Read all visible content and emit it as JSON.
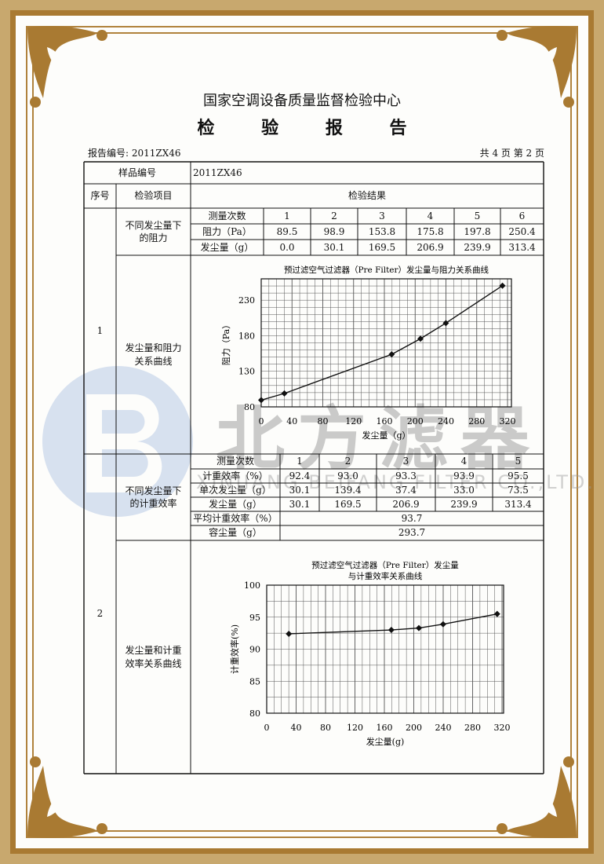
{
  "watermark": {
    "company_cn": "北方滤器",
    "company_en": "XINJIANG BEIFANG FILTER CO.,LTD.",
    "logo_color": "#9fb8dd"
  },
  "header": {
    "org": "国家空调设备质量监督检验中心",
    "title": "检 验 报 告",
    "report_no": "报告编号: 2011ZX46",
    "page_info": "共 4 页 第 2 页"
  },
  "table": {
    "sample_no_label": "样品编号",
    "sample_no": "2011ZX46",
    "col_seq": "序号",
    "col_item": "检验项目",
    "col_result": "检验结果",
    "sections": [
      {
        "seq": "1",
        "item_table": "不同发尘量下的阻力",
        "item_chart": "发尘量和阻力关系曲线",
        "rows": [
          [
            "测量次数",
            "1",
            "2",
            "3",
            "4",
            "5",
            "6"
          ],
          [
            "阻力（Pa）",
            "89.5",
            "98.9",
            "153.8",
            "175.8",
            "197.8",
            "250.4"
          ],
          [
            "发尘量（g）",
            "0.0",
            "30.1",
            "169.5",
            "206.9",
            "239.9",
            "313.4"
          ]
        ]
      },
      {
        "seq": "2",
        "item_table": "不同发尘量下的计重效率",
        "item_chart": "发尘量和计重效率关系曲线",
        "rows": [
          [
            "测量次数",
            "1",
            "2",
            "3",
            "4",
            "5"
          ],
          [
            "计重效率（%）",
            "92.4",
            "93.0",
            "93.3",
            "93.9",
            "95.5"
          ],
          [
            "单次发尘量（g）",
            "30.1",
            "139.4",
            "37.4",
            "33.0",
            "73.5"
          ],
          [
            "发尘量（g）",
            "30.1",
            "169.5",
            "206.9",
            "239.9",
            "313.4"
          ]
        ],
        "summary": [
          [
            "平均计重效率（%）",
            "93.7"
          ],
          [
            "容尘量（g）",
            "293.7"
          ]
        ]
      }
    ]
  },
  "chart_data": [
    {
      "type": "line",
      "title": "预过滤空气过滤器（Pre Filter）发尘量与阻力关系曲线",
      "xlabel": "发尘量（g）",
      "ylabel": "阻力（Pa）",
      "x": [
        0.0,
        30.1,
        169.5,
        206.9,
        239.9,
        313.4
      ],
      "y": [
        89.5,
        98.9,
        153.8,
        175.8,
        197.8,
        250.4
      ],
      "xlim": [
        0,
        320
      ],
      "ylim": [
        80,
        260
      ],
      "xticks": [
        "0",
        "40",
        "80",
        "120",
        "160",
        "200",
        "240",
        "280",
        "320"
      ],
      "yticks": [
        "80",
        "130",
        "180",
        "230"
      ],
      "grid": true
    },
    {
      "type": "line",
      "title": "预过滤空气过滤器（Pre Filter）发尘量",
      "title2": "与计重效率关系曲线",
      "xlabel": "发尘量(g)",
      "ylabel": "计重效率(%)",
      "x": [
        30.1,
        169.5,
        206.9,
        239.9,
        313.4
      ],
      "y": [
        92.4,
        93.0,
        93.3,
        93.9,
        95.5
      ],
      "xlim": [
        0,
        320
      ],
      "ylim": [
        80,
        100
      ],
      "xticks": [
        "0",
        "40",
        "80",
        "120",
        "160",
        "200",
        "240",
        "280",
        "320"
      ],
      "yticks": [
        "80",
        "85",
        "90",
        "95",
        "100"
      ],
      "grid": true
    }
  ]
}
